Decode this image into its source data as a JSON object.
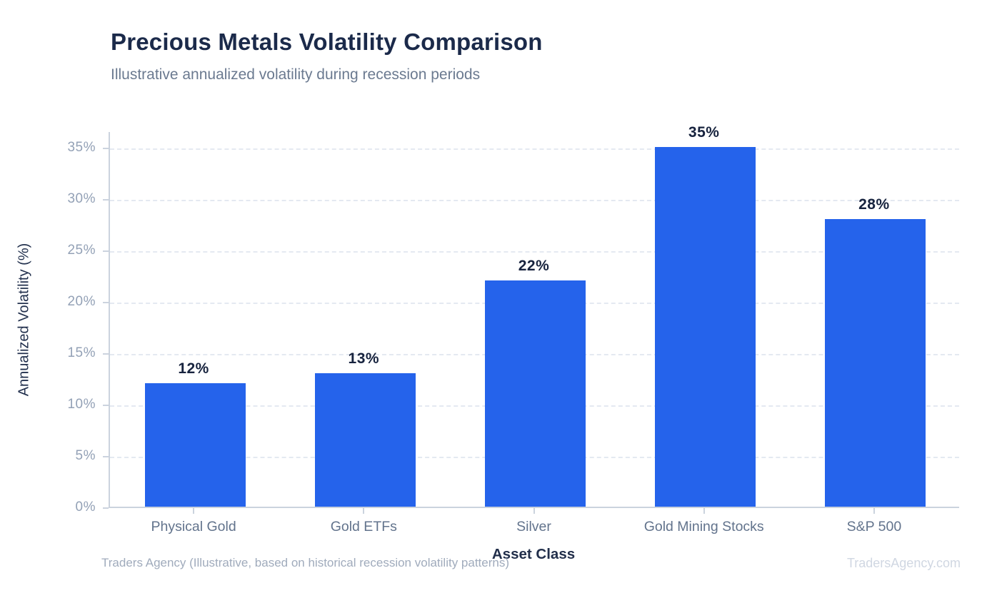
{
  "chart_data": {
    "type": "bar",
    "title": "Precious Metals Volatility Comparison",
    "subtitle": "Illustrative annualized volatility during recession periods",
    "xlabel": "Asset Class",
    "ylabel": "Annualized Volatility (%)",
    "categories": [
      "Physical Gold",
      "Gold ETFs",
      "Silver",
      "Gold Mining Stocks",
      "S&P 500"
    ],
    "values": [
      12,
      13,
      22,
      35,
      28
    ],
    "value_labels": [
      "12%",
      "13%",
      "22%",
      "35%",
      "28%"
    ],
    "ytick_values": [
      0,
      5,
      10,
      15,
      20,
      25,
      30,
      35
    ],
    "ytick_labels": [
      "0%",
      "5%",
      "10%",
      "15%",
      "20%",
      "25%",
      "30%",
      "35%"
    ],
    "ylim": [
      0,
      36.6
    ],
    "grid": true,
    "legend": "none",
    "bar_color": "#2563eb",
    "title_color": "#1b2a4a",
    "footer_left": "Traders Agency (Illustrative, based on historical recession volatility patterns)",
    "footer_right": "TradersAgency.com"
  }
}
